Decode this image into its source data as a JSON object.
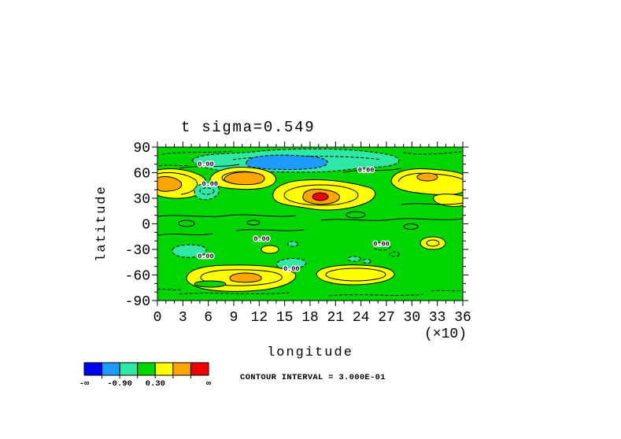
{
  "chart_data": {
    "type": "heatmap",
    "subtype": "filled-contour-map",
    "title": "t sigma=0.549",
    "x_axis": {
      "label": "longitude",
      "multiplier": "(×10)",
      "tick_labels": [
        "0",
        "3",
        "6",
        "9",
        "12",
        "15",
        "18",
        "21",
        "24",
        "27",
        "30",
        "33",
        "36"
      ],
      "range": [
        0,
        360
      ],
      "major_step": 30,
      "minor_step": 10
    },
    "y_axis": {
      "label": "latitude",
      "tick_labels": [
        "90",
        "60",
        "30",
        "0",
        "-30",
        "-60",
        "-90"
      ],
      "range": [
        90,
        -90
      ],
      "major_step": 30,
      "minor_step": 10
    },
    "palette": [
      "#0000F0",
      "#1E9BFF",
      "#2EE8A4",
      "#00D500",
      "#FFFF00",
      "#FFA500",
      "#F20000"
    ],
    "fill_levels": [
      -1.5,
      -0.9,
      -0.3,
      0.3,
      0.9,
      1.5
    ],
    "colorbar": {
      "labels": [
        {
          "text": "-∞",
          "boundary": 0
        },
        {
          "text": "-0.90",
          "boundary": 2
        },
        {
          "text": "0.30",
          "boundary": 4
        },
        {
          "text": "∞",
          "boundary": 7
        }
      ]
    },
    "contour_interval_label": "CONTOUR INTERVAL = 3.000E-01",
    "contour_interval": 0.3,
    "contour_labels": [
      {
        "text": "0.00",
        "lon": 57,
        "lat": 68
      },
      {
        "text": "0.00",
        "lon": 246,
        "lat": 61
      },
      {
        "text": "0.00",
        "lon": 62,
        "lat": 45
      },
      {
        "text": "0.00",
        "lon": 123,
        "lat": -20
      },
      {
        "text": "0.00",
        "lon": 57,
        "lat": -40
      },
      {
        "text": "0.00",
        "lon": 158,
        "lat": -55
      },
      {
        "text": "0.00",
        "lon": 264,
        "lat": -26
      }
    ],
    "features": [
      {
        "desc": "negative band (-0.3 to -0.9, turquoise) across high northern latitudes",
        "lon": [
          45,
          290
        ],
        "lat": [
          60,
          90
        ]
      },
      {
        "desc": "stronger negative core (-0.9 to -1.5, light blue)",
        "lon": [
          105,
          200
        ],
        "lat": [
          65,
          85
        ]
      },
      {
        "desc": "positive center ~ +1.2 (orange) at left edge",
        "lon": 8,
        "lat": 50
      },
      {
        "desc": "positive center ~ +1.3 (orange)",
        "lon": 100,
        "lat": 52
      },
      {
        "desc": "strongest positive center > +1.5 (red bullseye)",
        "lon": 190,
        "lat": 30
      },
      {
        "desc": "positive band ~ +0.6 with +1.0 orange patch",
        "lon": [
          280,
          360
        ],
        "lat": [
          35,
          60
        ]
      },
      {
        "desc": "weak negative patch ~ -0.4 (turquoise)",
        "lon": 58,
        "lat": 33
      },
      {
        "desc": "weak negative patches ~ -0.4 (turquoise)",
        "lon": 165,
        "lat": -33
      },
      {
        "desc": "weak positive patch ~ +0.4 (yellow)",
        "lon": 325,
        "lat": -23
      },
      {
        "desc": "positive band with +1.0 orange core",
        "lon": [
          40,
          165
        ],
        "lat": [
          -75,
          -52
        ]
      },
      {
        "desc": "positive band ~ +0.6 (yellow)",
        "lon": [
          190,
          290
        ],
        "lat": [
          -72,
          -56
        ]
      }
    ]
  }
}
